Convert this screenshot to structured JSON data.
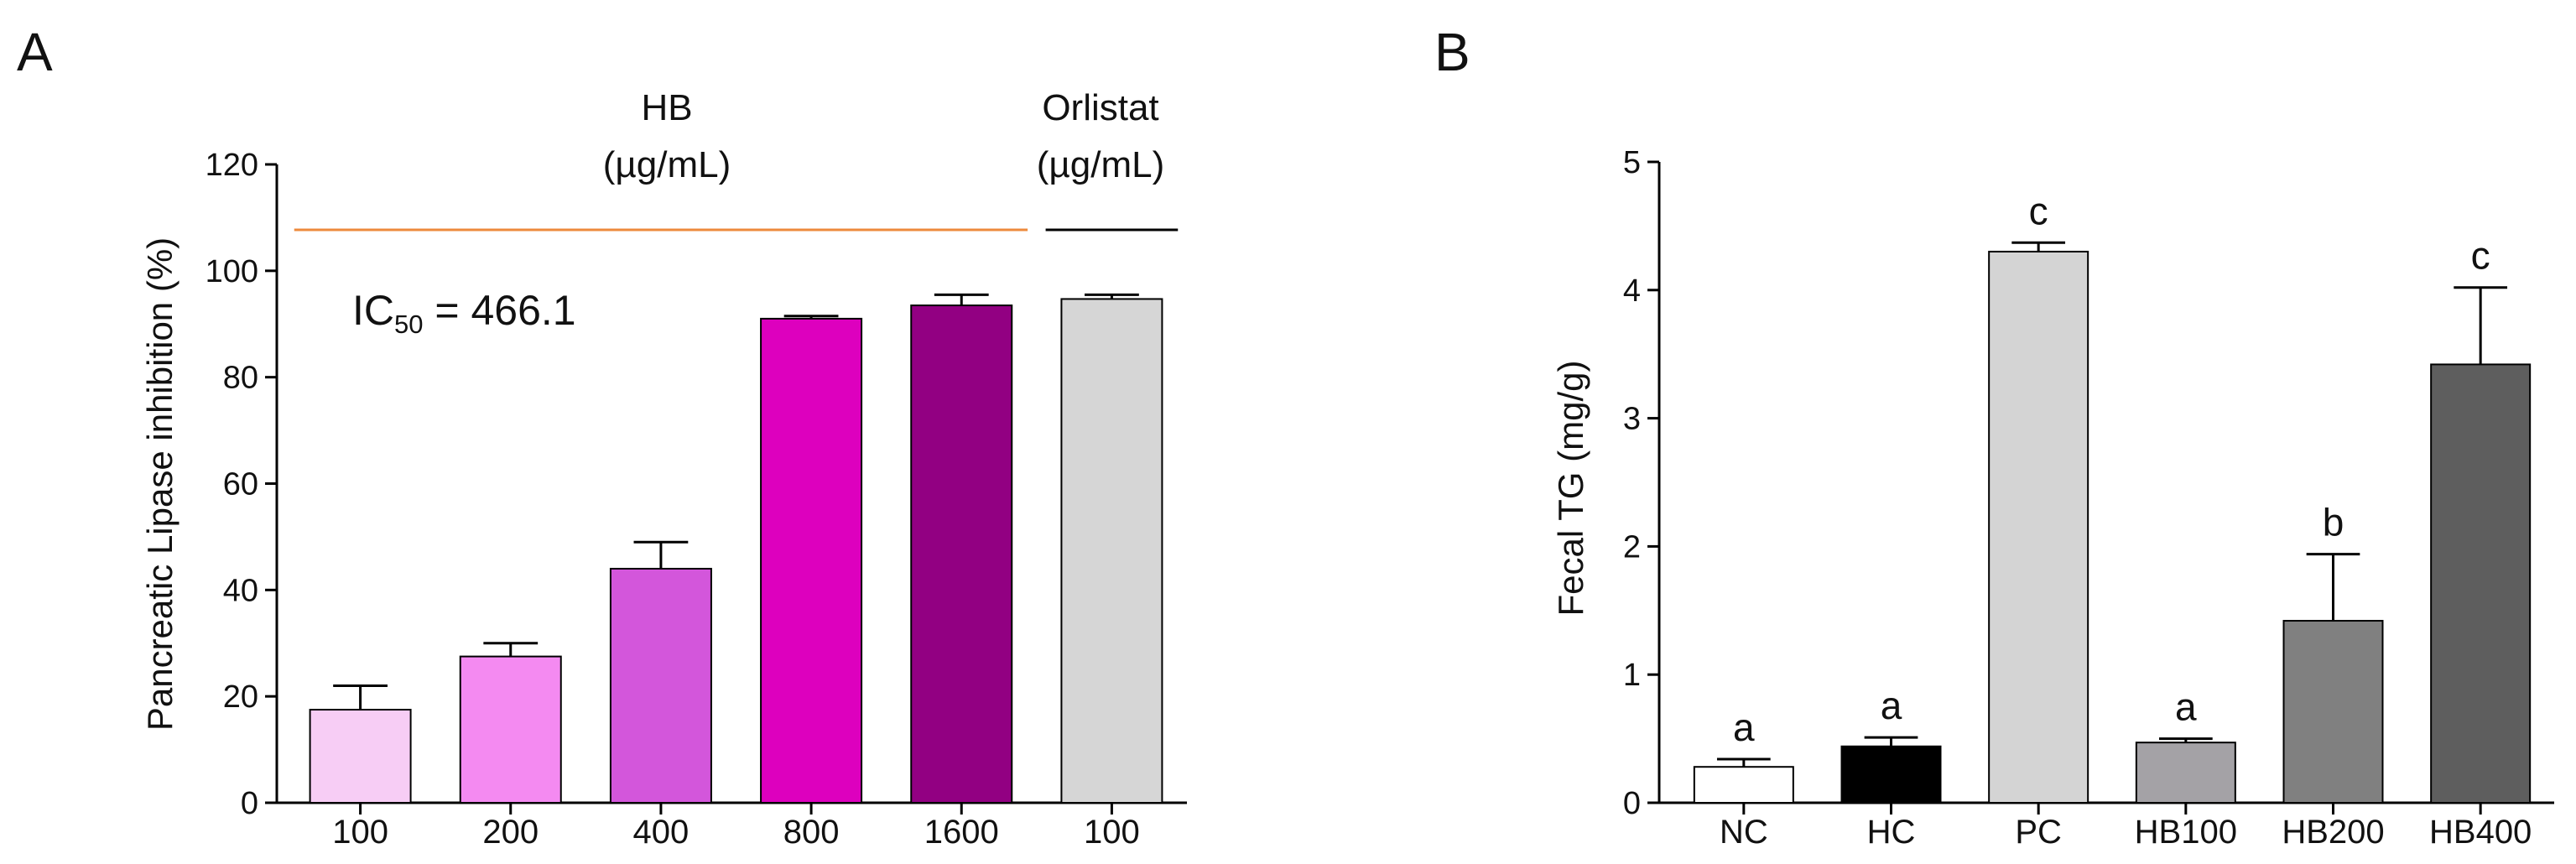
{
  "panels": [
    {
      "id": "A",
      "chart_data": {
        "type": "bar",
        "panel_label": "A",
        "title": "",
        "xlabel": "",
        "ylabel": "Pancreatic Lipase inhibition (%)",
        "ylim": [
          0,
          120
        ],
        "yticks": [
          0,
          20,
          40,
          60,
          80,
          100,
          120
        ],
        "categories": [
          "100",
          "200",
          "400",
          "800",
          "1600",
          "100"
        ],
        "values": [
          17.5,
          27.5,
          44,
          91,
          93.5,
          94.7
        ],
        "errors": [
          4.5,
          2.5,
          5,
          0.5,
          2,
          0.8
        ],
        "bar_colors": [
          "#F7CDF5",
          "#F48AF1",
          "#D356DB",
          "#DD00BE",
          "#920082",
          "#D6D6D6"
        ],
        "groups": [
          {
            "label_line1": "HB",
            "label_line2": "(µg/mL)",
            "first": 0,
            "last": 4,
            "line_color": "#ED8A3C"
          },
          {
            "label_line1": "Orlistat",
            "label_line2": "(µg/mL)",
            "first": 5,
            "last": 5,
            "line_color": "#000000"
          }
        ],
        "annotation": {
          "text": "IC",
          "subscript": "50",
          "rest": " = 466.1"
        }
      }
    },
    {
      "id": "B",
      "chart_data": {
        "type": "bar",
        "panel_label": "B",
        "title": "",
        "xlabel": "",
        "ylabel": "Fecal TG (mg/g)",
        "ylim": [
          0,
          5
        ],
        "yticks": [
          0,
          1,
          2,
          3,
          4,
          5
        ],
        "categories": [
          "NC",
          "HC",
          "PC",
          "HB100",
          "HB200",
          "HB400"
        ],
        "values": [
          0.28,
          0.44,
          4.3,
          0.47,
          1.42,
          3.42
        ],
        "errors": [
          0.06,
          0.07,
          0.07,
          0.03,
          0.52,
          0.6
        ],
        "bar_colors": [
          "#FFFFFF",
          "#000000",
          "#D4D4D4",
          "#A4A2A6",
          "#808080",
          "#5E5E5E"
        ],
        "significance": [
          "a",
          "a",
          "c",
          "a",
          "b",
          "c"
        ]
      }
    }
  ]
}
